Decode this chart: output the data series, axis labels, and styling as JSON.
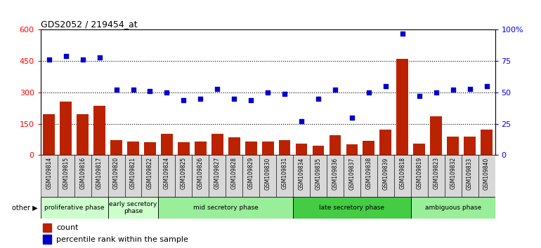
{
  "title": "GDS2052 / 219454_at",
  "samples": [
    "GSM109814",
    "GSM109815",
    "GSM109816",
    "GSM109817",
    "GSM109820",
    "GSM109821",
    "GSM109822",
    "GSM109824",
    "GSM109825",
    "GSM109826",
    "GSM109827",
    "GSM109828",
    "GSM109829",
    "GSM109830",
    "GSM109831",
    "GSM109834",
    "GSM109835",
    "GSM109836",
    "GSM109837",
    "GSM109838",
    "GSM109839",
    "GSM109818",
    "GSM109819",
    "GSM109823",
    "GSM109832",
    "GSM109833",
    "GSM109840"
  ],
  "counts": [
    195,
    255,
    195,
    235,
    70,
    65,
    60,
    100,
    60,
    65,
    100,
    85,
    65,
    65,
    70,
    55,
    45,
    95,
    50,
    68,
    120,
    460,
    55,
    185,
    88,
    88,
    120
  ],
  "percentiles": [
    76,
    79,
    76,
    78,
    52,
    52,
    51,
    50,
    44,
    45,
    53,
    45,
    44,
    50,
    49,
    27,
    45,
    52,
    30,
    50,
    55,
    97,
    47,
    50,
    52,
    53,
    55
  ],
  "bar_color": "#bb2200",
  "dot_color": "#0000cc",
  "left_ylim": [
    0,
    600
  ],
  "left_yticks": [
    0,
    150,
    300,
    450,
    600
  ],
  "right_ylim": [
    0,
    100
  ],
  "right_yticks": [
    0,
    25,
    50,
    75,
    100
  ],
  "right_yticklabels": [
    "0",
    "25",
    "50",
    "75",
    "100%"
  ],
  "phase_labels": [
    "proliferative phase",
    "early secretory\nphase",
    "mid secretory phase",
    "late secretory phase",
    "ambiguous phase"
  ],
  "phase_starts": [
    0,
    4,
    7,
    15,
    22
  ],
  "phase_ends": [
    4,
    7,
    15,
    22,
    27
  ],
  "phase_colors": [
    "#ccffcc",
    "#ccffcc",
    "#99ee99",
    "#44cc44",
    "#99ee99"
  ],
  "legend_count_label": "count",
  "legend_pct_label": "percentile rank within the sample",
  "other_label": "other"
}
